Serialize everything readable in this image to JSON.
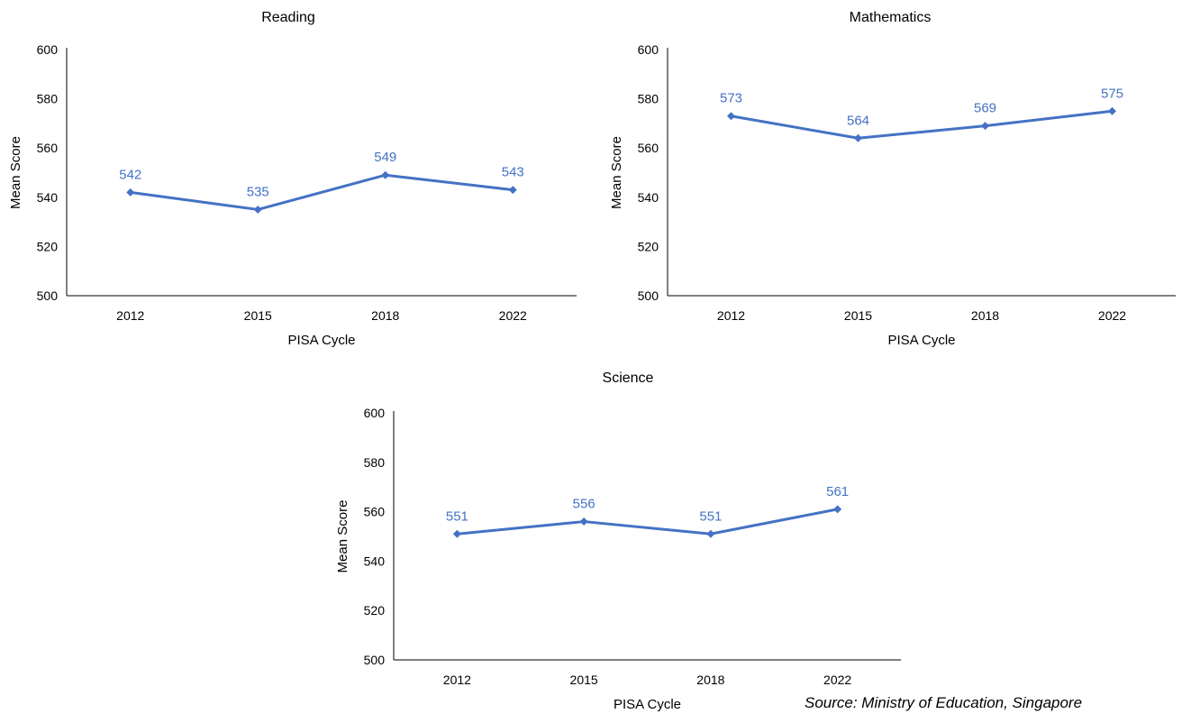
{
  "chart_data": [
    {
      "type": "line",
      "title": "Reading",
      "xlabel": "PISA Cycle",
      "ylabel": "Mean Score",
      "categories": [
        "2012",
        "2015",
        "2018",
        "2022"
      ],
      "values": [
        542,
        535,
        549,
        543
      ],
      "data_labels": [
        "542",
        "535",
        "549",
        "543"
      ],
      "ylim": [
        500,
        600
      ],
      "yticks": [
        "500",
        "520",
        "540",
        "560",
        "580",
        "600"
      ],
      "grid": false,
      "color": "#4472C4"
    },
    {
      "type": "line",
      "title": "Mathematics",
      "xlabel": "PISA Cycle",
      "ylabel": "Mean Score",
      "categories": [
        "2012",
        "2015",
        "2018",
        "2022"
      ],
      "values": [
        573,
        564,
        569,
        575
      ],
      "data_labels": [
        "573",
        "564",
        "569",
        "575"
      ],
      "ylim": [
        500,
        600
      ],
      "yticks": [
        "500",
        "520",
        "540",
        "560",
        "580",
        "600"
      ],
      "grid": false,
      "color": "#4472C4"
    },
    {
      "type": "line",
      "title": "Science",
      "xlabel": "PISA Cycle",
      "ylabel": "Mean Score",
      "categories": [
        "2012",
        "2015",
        "2018",
        "2022"
      ],
      "values": [
        551,
        556,
        551,
        561
      ],
      "data_labels": [
        "551",
        "556",
        "551",
        "561"
      ],
      "ylim": [
        500,
        600
      ],
      "yticks": [
        "500",
        "520",
        "540",
        "560",
        "580",
        "600"
      ],
      "grid": false,
      "color": "#4472C4"
    }
  ],
  "source": "Source: Ministry of Education, Singapore"
}
